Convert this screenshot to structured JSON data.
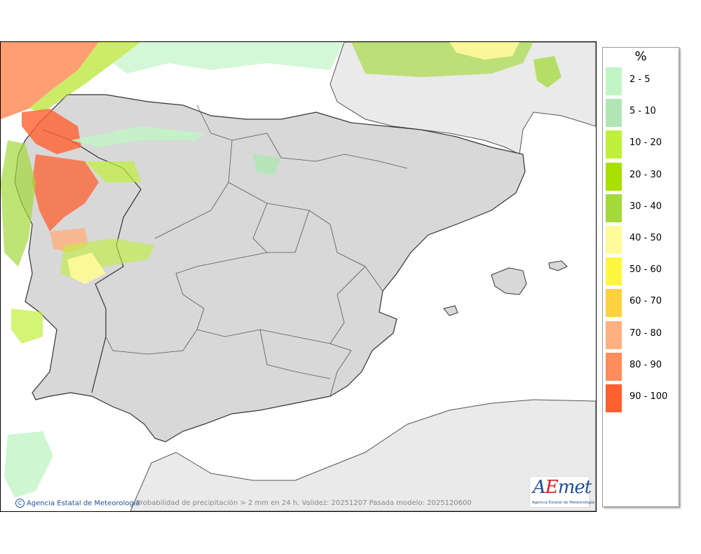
{
  "legend": {
    "unit": "%",
    "items": [
      {
        "label": "2 - 5",
        "color": "#c2f5c6"
      },
      {
        "label": "5 - 10",
        "color": "#b2e5b6"
      },
      {
        "label": "10 - 20",
        "color": "#c0f03a"
      },
      {
        "label": "20 - 30",
        "color": "#a8e000"
      },
      {
        "label": "30 - 40",
        "color": "#a3d93a"
      },
      {
        "label": "40 - 50",
        "color": "#fffa9a"
      },
      {
        "label": "50 - 60",
        "color": "#fff640"
      },
      {
        "label": "60 - 70",
        "color": "#ffd040"
      },
      {
        "label": "70 - 80",
        "color": "#ffb080"
      },
      {
        "label": "80 - 90",
        "color": "#ff8c5a"
      },
      {
        "label": "90 - 100",
        "color": "#ff6030"
      }
    ]
  },
  "footer": {
    "copyright_symbol": "C",
    "agency": "Agencia Estatal de Meteorología",
    "caption": "Probabilidad de precipitación > 2 mm en 24 h. Validez: 20251207 Pasada modelo: 2025120600"
  },
  "logo": {
    "letter_a": "A",
    "letter_e": "E",
    "rest": "met",
    "subtitle": "Agencia Estatal de Meteorología"
  },
  "colors": {
    "land": "#d8d8d8",
    "sea": "#ffffff",
    "foreign_land": "#eaeaea",
    "border": "#333333"
  }
}
